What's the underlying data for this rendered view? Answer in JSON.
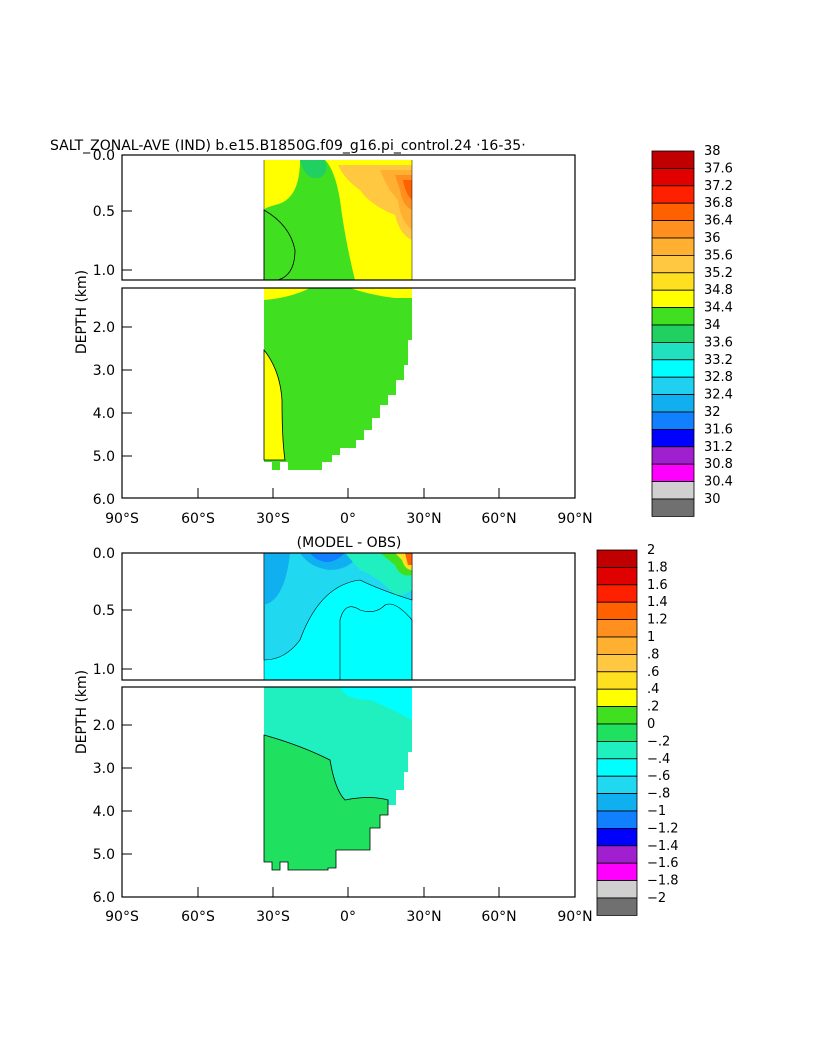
{
  "chart_data": [
    {
      "type": "heatmap",
      "title": "SALT_ZONAL-AVE (IND) b.e15.B1850G.f09_g16.pi_control.24 ‧16-35‧",
      "ylabel": "DEPTH (km)",
      "xlabel": "",
      "x_ticks": [
        "90°S",
        "60°S",
        "30°S",
        "0°",
        "30°N",
        "60°N",
        "90°N"
      ],
      "x_range_deg": [
        -90,
        90
      ],
      "y_ticks_upper": [
        "0.0",
        "0.5",
        "1.0"
      ],
      "y_ticks_lower": [
        "2.0",
        "3.0",
        "4.0",
        "5.0",
        "6.0"
      ],
      "y_range_km": [
        0,
        6
      ],
      "colorbar_levels": [
        "38",
        "37.6",
        "37.2",
        "36.8",
        "36.4",
        "36",
        "35.6",
        "35.2",
        "34.8",
        "34.4",
        "34",
        "33.6",
        "33.2",
        "32.8",
        "32.4",
        "32",
        "31.6",
        "31.2",
        "30.8",
        "30.4",
        "30"
      ],
      "colorbar_colors": [
        "#c00000",
        "#e00000",
        "#ff2000",
        "#ff6000",
        "#ff9020",
        "#ffb030",
        "#ffc840",
        "#ffe020",
        "#ffff00",
        "#40e020",
        "#20d060",
        "#20e0c0",
        "#00ffff",
        "#20d0f0",
        "#10b0f0",
        "#1080ff",
        "#0000ff",
        "#a020d0",
        "#ff00ff",
        "#d0d0d0",
        "#707070"
      ]
    },
    {
      "type": "heatmap",
      "title": "(MODEL - OBS)",
      "ylabel": "DEPTH (km)",
      "xlabel": "",
      "x_ticks": [
        "90°S",
        "60°S",
        "30°S",
        "0°",
        "30°N",
        "60°N",
        "90°N"
      ],
      "x_range_deg": [
        -90,
        90
      ],
      "y_ticks_upper": [
        "0.0",
        "0.5",
        "1.0"
      ],
      "y_ticks_lower": [
        "2.0",
        "3.0",
        "4.0",
        "5.0",
        "6.0"
      ],
      "y_range_km": [
        0,
        6
      ],
      "colorbar_levels": [
        "2",
        "1.8",
        "1.6",
        "1.4",
        "1.2",
        "1",
        ".8",
        ".6",
        ".4",
        ".2",
        "0",
        "−.2",
        "−.4",
        "−.6",
        "−.8",
        "−1",
        "−1.2",
        "−1.4",
        "−1.6",
        "−1.8",
        "−2"
      ],
      "colorbar_colors": [
        "#c00000",
        "#e00000",
        "#ff2000",
        "#ff6000",
        "#ff9020",
        "#ffb030",
        "#ffc840",
        "#ffe020",
        "#ffff00",
        "#40e020",
        "#20e060",
        "#20f0c0",
        "#00ffff",
        "#20d8f0",
        "#10b0f0",
        "#1080ff",
        "#0000ff",
        "#a020d0",
        "#ff00ff",
        "#d0d0d0",
        "#707070"
      ]
    }
  ]
}
